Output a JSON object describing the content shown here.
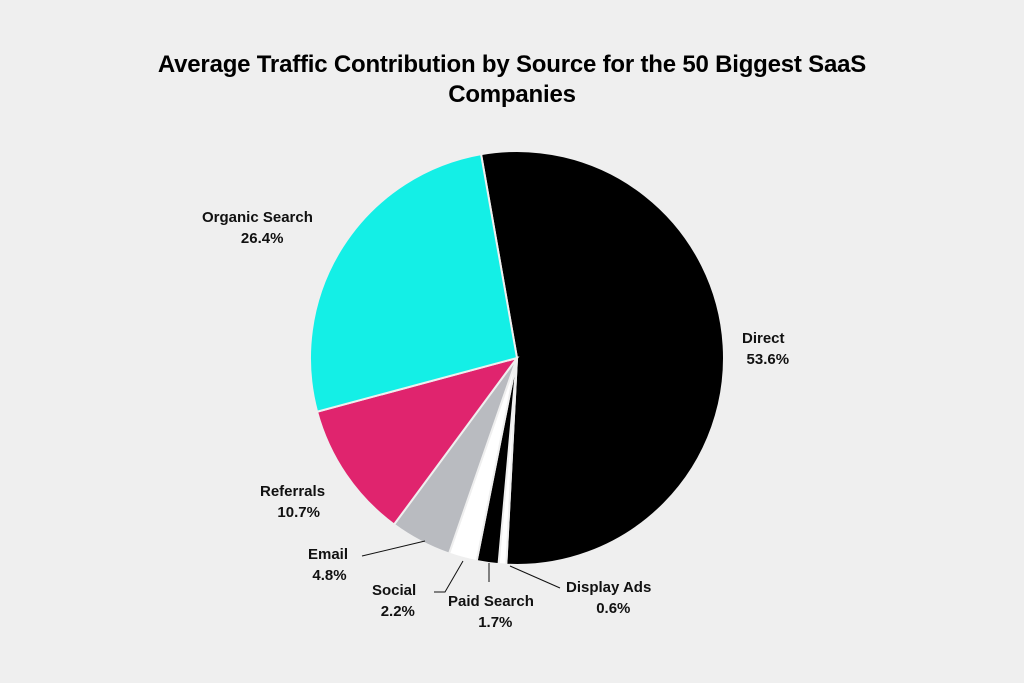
{
  "chart_data": {
    "type": "pie",
    "title": "Average Traffic Contribution by Source for the 50 Biggest SaaS Companies",
    "title_lines": [
      "Average Traffic Contribution by Source for the 50 Biggest SaaS",
      "Companies"
    ],
    "slices": [
      {
        "label": "Direct",
        "value": 53.6,
        "display": "53.6%",
        "color": "#000000"
      },
      {
        "label": "Display Ads",
        "value": 0.6,
        "display": "0.6%",
        "color": "#ffffff"
      },
      {
        "label": "Paid Search",
        "value": 1.7,
        "display": "1.7%",
        "color": "#000000"
      },
      {
        "label": "Social",
        "value": 2.2,
        "display": "2.2%",
        "color": "#ffffff"
      },
      {
        "label": "Email",
        "value": 4.8,
        "display": "4.8%",
        "color": "#b9bbc0"
      },
      {
        "label": "Referrals",
        "value": 10.7,
        "display": "10.7%",
        "color": "#e0246e"
      },
      {
        "label": "Organic Search",
        "value": 26.4,
        "display": "26.4%",
        "color": "#14efe6"
      }
    ],
    "legend": "none"
  }
}
